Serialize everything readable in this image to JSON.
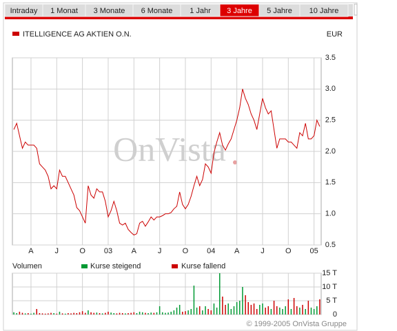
{
  "tabs": {
    "items": [
      "Intraday",
      "1 Monat",
      "3 Monate",
      "6 Monate",
      "1 Jahr",
      "3 Jahre",
      "5 Jahre",
      "10 Jahre"
    ],
    "active": 5
  },
  "watermark": "OnVista",
  "footer": "© 1999-2005 OnVista Gruppe",
  "chart_data": [
    {
      "type": "line",
      "y_label": "EUR",
      "grid": true,
      "ylim": [
        0.5,
        3.5
      ],
      "yticks": [
        0.5,
        {
          "value": 1,
          "label": "1.0"
        },
        1.5,
        {
          "value": 2,
          "label": "2.0"
        },
        2.5,
        {
          "value": 3,
          "label": "3.0"
        },
        3.5
      ],
      "categories": [
        null,
        null,
        null,
        null,
        null,
        null,
        "A",
        null,
        null,
        null,
        null,
        null,
        null,
        null,
        null,
        "J",
        null,
        null,
        null,
        null,
        null,
        null,
        null,
        null,
        "O",
        null,
        null,
        null,
        null,
        null,
        null,
        null,
        null,
        "03",
        null,
        null,
        null,
        null,
        null,
        null,
        null,
        null,
        "A",
        null,
        null,
        null,
        null,
        null,
        null,
        null,
        null,
        "J",
        null,
        null,
        null,
        null,
        null,
        null,
        null,
        null,
        "O",
        null,
        null,
        null,
        null,
        null,
        null,
        null,
        null,
        "04",
        null,
        null,
        null,
        null,
        null,
        null,
        null,
        null,
        "A",
        null,
        null,
        null,
        null,
        null,
        null,
        null,
        null,
        "J",
        null,
        null,
        null,
        null,
        null,
        null,
        null,
        null,
        "O",
        null,
        null,
        null,
        null,
        null,
        null,
        null,
        null,
        "05",
        null,
        null
      ],
      "series": [
        {
          "name": "ITELLIGENCE AG AKTIEN O.N.",
          "color": "#cc0000",
          "values": [
            2.35,
            2.45,
            2.25,
            2.05,
            2.15,
            2.1,
            2.1,
            2.1,
            2.05,
            1.8,
            1.75,
            1.7,
            1.6,
            1.4,
            1.45,
            1.4,
            1.7,
            1.6,
            1.6,
            1.5,
            1.4,
            1.3,
            1.1,
            1.05,
            0.95,
            0.85,
            1.45,
            1.3,
            1.25,
            1.4,
            1.35,
            1.35,
            1.2,
            0.95,
            1.05,
            1.2,
            1.05,
            0.85,
            0.82,
            0.85,
            0.75,
            0.7,
            0.66,
            0.68,
            0.85,
            0.88,
            0.8,
            0.87,
            0.95,
            0.9,
            0.95,
            0.95,
            0.97,
            1.0,
            1.0,
            1.02,
            1.08,
            1.12,
            1.35,
            1.15,
            1.08,
            1.15,
            1.28,
            1.45,
            1.6,
            1.45,
            1.55,
            1.8,
            1.75,
            1.65,
            1.98,
            2.15,
            2.3,
            2.1,
            2.02,
            2.12,
            2.2,
            2.35,
            2.5,
            2.7,
            3.0,
            2.85,
            2.75,
            2.6,
            2.5,
            2.35,
            2.6,
            2.85,
            2.7,
            2.6,
            2.65,
            2.35,
            2.05,
            2.2,
            2.2,
            2.2,
            2.15,
            2.15,
            2.1,
            2.05,
            2.3,
            2.25,
            2.45,
            2.2,
            2.2,
            2.25,
            2.5,
            2.4
          ]
        }
      ]
    },
    {
      "type": "bar",
      "title": "Volumen",
      "grid": true,
      "ylim": [
        0,
        15
      ],
      "yticks": [
        0,
        {
          "value": 5,
          "label": "5 T"
        },
        {
          "value": 10,
          "label": "10 T"
        },
        {
          "value": 15,
          "label": "15 T"
        }
      ],
      "series": [
        {
          "name": "Kurse steigend",
          "color": "#009933",
          "values": [
            0.8,
            0.5,
            null,
            null,
            0.4,
            null,
            0.3,
            0.6,
            null,
            null,
            null,
            null,
            null,
            null,
            0.5,
            null,
            1.0,
            null,
            0.3,
            null,
            null,
            null,
            null,
            null,
            null,
            null,
            1.5,
            null,
            null,
            0.7,
            null,
            0.4,
            null,
            null,
            0.7,
            0.5,
            null,
            null,
            null,
            0.4,
            null,
            null,
            null,
            0.5,
            1.0,
            0.8,
            null,
            0.5,
            0.7,
            null,
            0.8,
            3.0,
            0.8,
            0.6,
            0.7,
            1.0,
            1.5,
            2.5,
            3.5,
            null,
            null,
            1.5,
            2.0,
            10.5,
            2.5,
            null,
            1.5,
            3.0,
            null,
            null,
            4.0,
            2.5,
            15.0,
            null,
            null,
            4.0,
            2.0,
            3.0,
            4.5,
            5.0,
            10.0,
            null,
            null,
            null,
            null,
            null,
            3.5,
            4.0,
            null,
            null,
            2.0,
            null,
            null,
            2.5,
            2.0,
            3.0,
            null,
            2.0,
            null,
            null,
            2.5,
            null,
            2.0,
            null,
            2.5,
            2.0,
            3.0,
            null
          ]
        },
        {
          "name": "Kurse fallend",
          "color": "#cc0000",
          "values": [
            null,
            null,
            1.0,
            0.6,
            null,
            0.5,
            null,
            null,
            2.0,
            0.5,
            0.4,
            0.3,
            0.4,
            0.6,
            null,
            0.3,
            null,
            0.4,
            null,
            0.5,
            0.4,
            0.6,
            0.5,
            0.8,
            1.2,
            0.6,
            null,
            0.8,
            0.6,
            null,
            0.5,
            null,
            0.6,
            1.0,
            null,
            null,
            0.4,
            0.6,
            0.5,
            null,
            0.5,
            0.6,
            0.8,
            null,
            null,
            null,
            0.6,
            null,
            null,
            0.6,
            null,
            null,
            null,
            null,
            null,
            null,
            null,
            null,
            null,
            1.0,
            1.2,
            null,
            null,
            null,
            null,
            3.0,
            null,
            null,
            2.0,
            1.5,
            null,
            null,
            null,
            6.5,
            3.5,
            null,
            null,
            null,
            null,
            null,
            null,
            7.0,
            4.5,
            3.5,
            4.0,
            2.0,
            null,
            null,
            2.5,
            3.0,
            null,
            5.0,
            3.0,
            null,
            null,
            null,
            5.5,
            null,
            6.0,
            3.0,
            null,
            3.5,
            null,
            5.0,
            null,
            null,
            null,
            5.5
          ]
        }
      ]
    }
  ]
}
